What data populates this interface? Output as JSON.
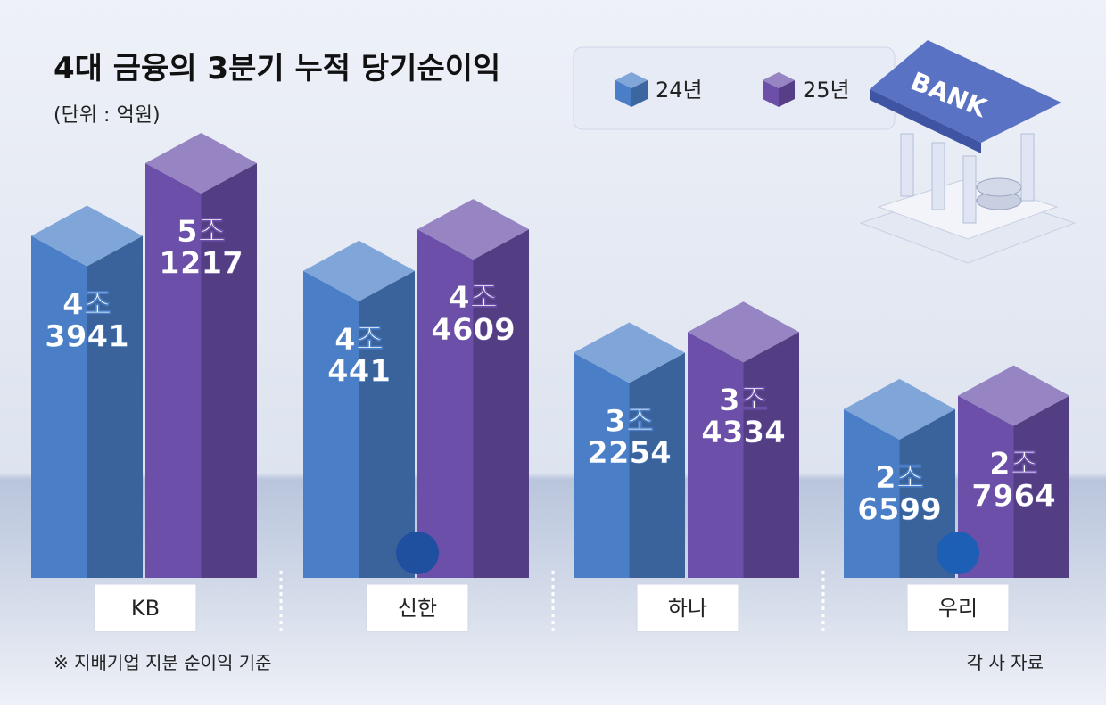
{
  "chart_data": {
    "type": "bar3d",
    "title": "4대 금융의 3분기 누적 당기순이익",
    "subtitle": "(단위 : 억원)",
    "categories": [
      "KB",
      "신한",
      "하나",
      "우리"
    ],
    "series": [
      {
        "name": "24년",
        "color": "#4a7fc8",
        "values": [
          43941,
          40441,
          32254,
          26599
        ],
        "value_labels": [
          "4조\n3941",
          "4조\n441",
          "3조\n2254",
          "2조\n6599"
        ]
      },
      {
        "name": "25년",
        "color": "#6b4fa8",
        "values": [
          51217,
          44609,
          34334,
          27964
        ],
        "value_labels": [
          "5조\n1217",
          "4조\n4609",
          "3조\n4334",
          "2조\n7964"
        ]
      }
    ],
    "footnote": "※ 지배기업 지분 순이익 기준",
    "source": "각 사 자료",
    "bank_label": "BANK"
  }
}
